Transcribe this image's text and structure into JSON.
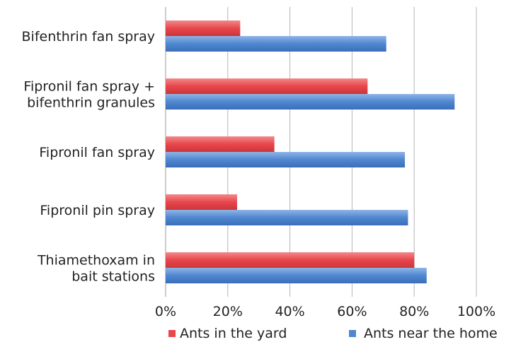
{
  "chart_data": {
    "type": "bar",
    "orientation": "horizontal",
    "categories": [
      [
        "Bifenthrin fan spray"
      ],
      [
        "Fipronil fan spray +",
        "bifenthrin granules"
      ],
      [
        "Fipronil fan spray"
      ],
      [
        "Fipronil pin spray"
      ],
      [
        "Thiamethoxam in",
        "bait stations"
      ]
    ],
    "series": [
      {
        "name": "Ants in the yard",
        "values": [
          24,
          65,
          35,
          23,
          80
        ],
        "color": "#e8474c"
      },
      {
        "name": "Ants near the home",
        "values": [
          71,
          93,
          77,
          78,
          84
        ],
        "color": "#4f87d0"
      }
    ],
    "xlim": [
      0,
      100
    ],
    "xticks": [
      "0%",
      "20%",
      "40%",
      "60%",
      "80%",
      "100%"
    ],
    "grid": true,
    "legend_position": "bottom"
  }
}
